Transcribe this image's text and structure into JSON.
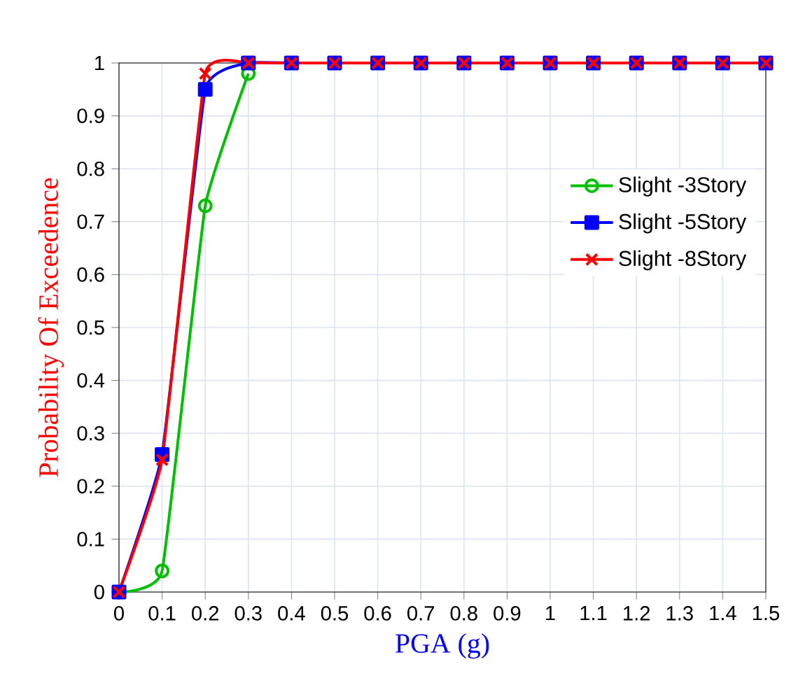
{
  "chart_data": {
    "type": "line",
    "xlabel": "PGA (g)",
    "ylabel": "Probability Of Exceedence",
    "x": [
      0,
      0.1,
      0.2,
      0.3,
      0.4,
      0.5,
      0.6,
      0.7,
      0.8,
      0.9,
      1,
      1.1,
      1.2,
      1.3,
      1.4,
      1.5
    ],
    "series": [
      {
        "name": "Slight -3Story",
        "color": "#00c000",
        "marker": "circle",
        "values": [
          0,
          0.04,
          0.73,
          0.98,
          null,
          null,
          null,
          null,
          null,
          null,
          null,
          null,
          null,
          null,
          null,
          null
        ]
      },
      {
        "name": "Slight -5Story",
        "color": "#0000ff",
        "marker": "square",
        "values": [
          0,
          0.26,
          0.95,
          1,
          1,
          1,
          1,
          1,
          1,
          1,
          1,
          1,
          1,
          1,
          1,
          1
        ]
      },
      {
        "name": "Slight -8Story",
        "color": "#ff0000",
        "marker": "cross",
        "values": [
          0,
          0.25,
          0.98,
          1,
          1,
          1,
          1,
          1,
          1,
          1,
          1,
          1,
          1,
          1,
          1,
          1
        ]
      }
    ],
    "xlim": [
      0,
      1.5
    ],
    "ylim": [
      0,
      1
    ],
    "xticks": [
      0,
      0.1,
      0.2,
      0.3,
      0.4,
      0.5,
      0.6,
      0.7,
      0.8,
      0.9,
      1,
      1.1,
      1.2,
      1.3,
      1.4,
      1.5
    ],
    "yticks": [
      0,
      0.1,
      0.2,
      0.3,
      0.4,
      0.5,
      0.6,
      0.7,
      0.8,
      0.9,
      1
    ],
    "grid": true,
    "legend": "top right"
  }
}
